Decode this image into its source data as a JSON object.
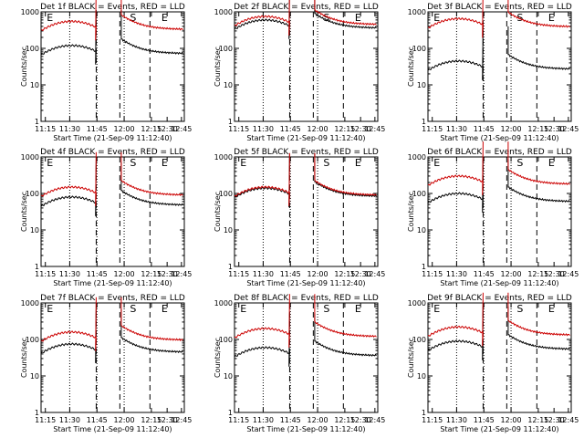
{
  "figure": {
    "xtick_labels": [
      "11:15",
      "11:30",
      "11:45",
      "12:00",
      "12:15",
      "12:30",
      "12:45"
    ],
    "ytick_labels": [
      "1",
      "10",
      "100",
      "1000"
    ],
    "ylabel": "Counts/sec",
    "xlabel": "Start Time (21-Sep-09 11:12:40)"
  },
  "chart_data": [
    {
      "type": "line",
      "title": "Det 1f BLACK = Events, RED = LLD",
      "yscale": "log",
      "ylim": [
        1,
        1000
      ],
      "xlim_minutes": [
        11.3,
        12.83
      ],
      "markers": [
        "E",
        "S",
        "E"
      ],
      "series": [
        {
          "name": "Events",
          "color": "#000000",
          "level": 120,
          "peak": 140
        },
        {
          "name": "LLD",
          "color": "#cc0000",
          "level": 550,
          "peak": 700
        }
      ]
    },
    {
      "type": "line",
      "title": "Det 2f BLACK = Events, RED = LLD",
      "yscale": "log",
      "ylim": [
        1,
        1000
      ],
      "xlim_minutes": [
        11.3,
        12.83
      ],
      "markers": [
        "",
        "S",
        "E"
      ],
      "series": [
        {
          "name": "Events",
          "color": "#000000",
          "level": 600,
          "peak": 620
        },
        {
          "name": "LLD",
          "color": "#cc0000",
          "level": 750,
          "peak": 780
        }
      ]
    },
    {
      "type": "line",
      "title": "Det 3f BLACK = Events, RED = LLD",
      "yscale": "log",
      "ylim": [
        1,
        1000
      ],
      "xlim_minutes": [
        11.3,
        12.83
      ],
      "markers": [
        "E",
        "S",
        "E"
      ],
      "series": [
        {
          "name": "Events",
          "color": "#000000",
          "level": 45,
          "peak": 50
        },
        {
          "name": "LLD",
          "color": "#cc0000",
          "level": 650,
          "peak": 700
        }
      ]
    },
    {
      "type": "line",
      "title": "Det 4f BLACK = Events, RED = LLD",
      "yscale": "log",
      "ylim": [
        1,
        1000
      ],
      "xlim_minutes": [
        11.3,
        12.83
      ],
      "markers": [
        "E",
        "S",
        "E"
      ],
      "series": [
        {
          "name": "Events",
          "color": "#000000",
          "level": 80,
          "peak": 90
        },
        {
          "name": "LLD",
          "color": "#cc0000",
          "level": 150,
          "peak": 170
        }
      ]
    },
    {
      "type": "line",
      "title": "Det 5f BLACK = Events, RED = LLD",
      "yscale": "log",
      "ylim": [
        1,
        1000
      ],
      "xlim_minutes": [
        11.3,
        12.83
      ],
      "markers": [
        "E",
        "S",
        "E"
      ],
      "series": [
        {
          "name": "Events",
          "color": "#000000",
          "level": 140,
          "peak": 150
        },
        {
          "name": "LLD",
          "color": "#cc0000",
          "level": 150,
          "peak": 160
        }
      ]
    },
    {
      "type": "line",
      "title": "Det 6f BLACK = Events, RED = LLD",
      "yscale": "log",
      "ylim": [
        1,
        1000
      ],
      "xlim_minutes": [
        11.3,
        12.83
      ],
      "markers": [
        "E",
        "S",
        "E"
      ],
      "series": [
        {
          "name": "Events",
          "color": "#000000",
          "level": 100,
          "peak": 110
        },
        {
          "name": "LLD",
          "color": "#cc0000",
          "level": 300,
          "peak": 330
        }
      ]
    },
    {
      "type": "line",
      "title": "Det 7f BLACK = Events, RED = LLD",
      "yscale": "log",
      "ylim": [
        1,
        1000
      ],
      "xlim_minutes": [
        11.3,
        12.83
      ],
      "markers": [
        "E",
        "S",
        "E"
      ],
      "series": [
        {
          "name": "Events",
          "color": "#000000",
          "level": 75,
          "peak": 85
        },
        {
          "name": "LLD",
          "color": "#cc0000",
          "level": 160,
          "peak": 180
        }
      ]
    },
    {
      "type": "line",
      "title": "Det 8f BLACK = Events, RED = LLD",
      "yscale": "log",
      "ylim": [
        1,
        1000
      ],
      "xlim_minutes": [
        11.3,
        12.83
      ],
      "markers": [
        "E",
        "S",
        "E"
      ],
      "series": [
        {
          "name": "Events",
          "color": "#000000",
          "level": 60,
          "peak": 65
        },
        {
          "name": "LLD",
          "color": "#cc0000",
          "level": 200,
          "peak": 220
        }
      ]
    },
    {
      "type": "line",
      "title": "Det 9f BLACK = Events, RED = LLD",
      "yscale": "log",
      "ylim": [
        1,
        1000
      ],
      "xlim_minutes": [
        11.3,
        12.83
      ],
      "markers": [
        "E",
        "S",
        "E"
      ],
      "series": [
        {
          "name": "Events",
          "color": "#000000",
          "level": 90,
          "peak": 100
        },
        {
          "name": "LLD",
          "color": "#cc0000",
          "level": 220,
          "peak": 240
        }
      ]
    }
  ]
}
